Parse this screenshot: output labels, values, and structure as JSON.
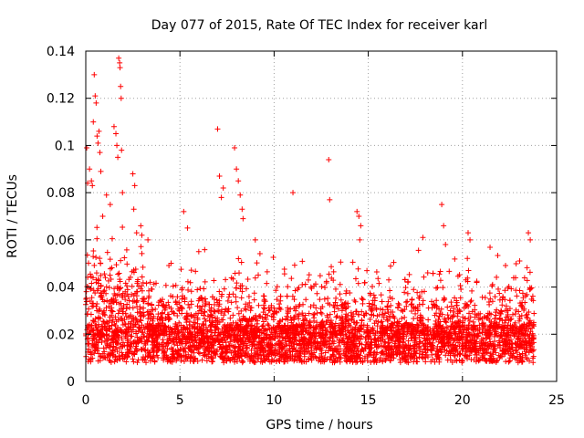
{
  "chart_data": {
    "type": "scatter",
    "title": "Day 077 of 2015, Rate Of TEC Index for receiver karl",
    "xlabel": "GPS time / hours",
    "ylabel": "ROTI / TECUs",
    "xlim": [
      0,
      25
    ],
    "ylim": [
      0,
      0.14
    ],
    "xticks": [
      "0",
      "5",
      "10",
      "15",
      "20",
      "25"
    ],
    "yticks": [
      "0",
      "0.02",
      "0.04",
      "0.06",
      "0.08",
      "0.1",
      "0.12",
      "0.14"
    ],
    "grid": true,
    "marker": "+",
    "color": "#ff0000",
    "series": [
      {
        "name": "ROTI",
        "x_range": [
          0,
          23.8
        ],
        "points": [
          [
            0.05,
            0.099
          ],
          [
            0.1,
            0.084
          ],
          [
            0.2,
            0.09
          ],
          [
            0.3,
            0.085
          ],
          [
            0.35,
            0.083
          ],
          [
            0.4,
            0.11
          ],
          [
            0.45,
            0.13
          ],
          [
            0.5,
            0.121
          ],
          [
            0.55,
            0.118
          ],
          [
            0.6,
            0.104
          ],
          [
            0.65,
            0.101
          ],
          [
            0.7,
            0.106
          ],
          [
            0.75,
            0.097
          ],
          [
            0.8,
            0.089
          ],
          [
            0.9,
            0.07
          ],
          [
            1.1,
            0.079
          ],
          [
            1.3,
            0.075
          ],
          [
            1.5,
            0.108
          ],
          [
            1.6,
            0.105
          ],
          [
            1.65,
            0.1
          ],
          [
            1.7,
            0.095
          ],
          [
            1.75,
            0.137
          ],
          [
            1.8,
            0.135
          ],
          [
            1.82,
            0.133
          ],
          [
            1.85,
            0.125
          ],
          [
            1.88,
            0.12
          ],
          [
            1.9,
            0.098
          ],
          [
            1.95,
            0.08
          ],
          [
            2.5,
            0.088
          ],
          [
            2.6,
            0.083
          ],
          [
            2.55,
            0.073
          ],
          [
            2.7,
            0.063
          ],
          [
            3.3,
            0.06
          ],
          [
            5.2,
            0.072
          ],
          [
            5.4,
            0.065
          ],
          [
            6.0,
            0.055
          ],
          [
            7.0,
            0.107
          ],
          [
            7.1,
            0.087
          ],
          [
            7.2,
            0.078
          ],
          [
            7.3,
            0.082
          ],
          [
            7.9,
            0.099
          ],
          [
            8.0,
            0.09
          ],
          [
            8.1,
            0.085
          ],
          [
            8.2,
            0.079
          ],
          [
            8.3,
            0.073
          ],
          [
            8.35,
            0.069
          ],
          [
            9.0,
            0.06
          ],
          [
            11.0,
            0.08
          ],
          [
            12.9,
            0.094
          ],
          [
            12.95,
            0.077
          ],
          [
            14.4,
            0.072
          ],
          [
            14.5,
            0.07
          ],
          [
            14.6,
            0.066
          ],
          [
            14.55,
            0.06
          ],
          [
            17.9,
            0.061
          ],
          [
            18.9,
            0.075
          ],
          [
            19.0,
            0.066
          ],
          [
            19.1,
            0.058
          ],
          [
            20.3,
            0.063
          ],
          [
            20.4,
            0.06
          ],
          [
            23.5,
            0.063
          ],
          [
            23.6,
            0.06
          ]
        ]
      }
    ]
  }
}
